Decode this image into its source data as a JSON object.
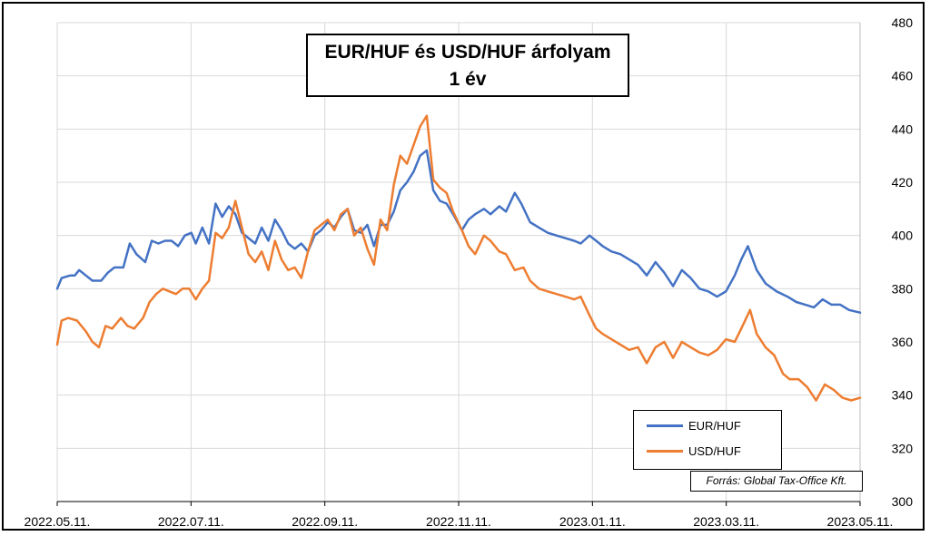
{
  "chart_data": {
    "type": "line",
    "title": [
      "EUR/HUF és USD/HUF árfolyam",
      "1 év"
    ],
    "x_tick_labels": [
      "2022.05.11.",
      "2022.07.11.",
      "2022.09.11.",
      "2022.11.11.",
      "2023.01.11.",
      "2023.03.11.",
      "2023.05.11."
    ],
    "y_tick_labels": [
      "300",
      "320",
      "340",
      "360",
      "380",
      "400",
      "420",
      "440",
      "460",
      "480"
    ],
    "ylim": [
      300,
      480
    ],
    "xlim": [
      "2022-05-11",
      "2023-05-11"
    ],
    "y_axis_side": "right",
    "grid": true,
    "legend_position": "bottom-right",
    "source_note": "Forrás: Global Tax-Office Kft.",
    "series": [
      {
        "name": "EUR/HUF",
        "color": "#4472C4",
        "points": [
          [
            "2022-05-11",
            380
          ],
          [
            "2022-05-13",
            384
          ],
          [
            "2022-05-17",
            385
          ],
          [
            "2022-05-19",
            385
          ],
          [
            "2022-05-21",
            387
          ],
          [
            "2022-05-24",
            385
          ],
          [
            "2022-05-27",
            383
          ],
          [
            "2022-05-31",
            383
          ],
          [
            "2022-06-03",
            386
          ],
          [
            "2022-06-06",
            388
          ],
          [
            "2022-06-10",
            388
          ],
          [
            "2022-06-13",
            397
          ],
          [
            "2022-06-16",
            393
          ],
          [
            "2022-06-20",
            390
          ],
          [
            "2022-06-23",
            398
          ],
          [
            "2022-06-26",
            397
          ],
          [
            "2022-06-29",
            398
          ],
          [
            "2022-07-02",
            398
          ],
          [
            "2022-07-05",
            396
          ],
          [
            "2022-07-08",
            400
          ],
          [
            "2022-07-11",
            401
          ],
          [
            "2022-07-13",
            397
          ],
          [
            "2022-07-16",
            403
          ],
          [
            "2022-07-19",
            397
          ],
          [
            "2022-07-22",
            412
          ],
          [
            "2022-07-25",
            407
          ],
          [
            "2022-07-28",
            411
          ],
          [
            "2022-07-31",
            408
          ],
          [
            "2022-08-03",
            401
          ],
          [
            "2022-08-06",
            399
          ],
          [
            "2022-08-09",
            397
          ],
          [
            "2022-08-12",
            403
          ],
          [
            "2022-08-15",
            398
          ],
          [
            "2022-08-18",
            406
          ],
          [
            "2022-08-21",
            402
          ],
          [
            "2022-08-24",
            397
          ],
          [
            "2022-08-27",
            395
          ],
          [
            "2022-08-30",
            397
          ],
          [
            "2022-09-02",
            394
          ],
          [
            "2022-09-05",
            400
          ],
          [
            "2022-09-08",
            402
          ],
          [
            "2022-09-11",
            405
          ],
          [
            "2022-09-14",
            403
          ],
          [
            "2022-09-17",
            407
          ],
          [
            "2022-09-20",
            410
          ],
          [
            "2022-09-23",
            402
          ],
          [
            "2022-09-26",
            401
          ],
          [
            "2022-09-29",
            404
          ],
          [
            "2022-10-02",
            396
          ],
          [
            "2022-10-05",
            404
          ],
          [
            "2022-10-08",
            404
          ],
          [
            "2022-10-11",
            409
          ],
          [
            "2022-10-14",
            417
          ],
          [
            "2022-10-17",
            420
          ],
          [
            "2022-10-20",
            424
          ],
          [
            "2022-10-23",
            430
          ],
          [
            "2022-10-26",
            432
          ],
          [
            "2022-10-29",
            417
          ],
          [
            "2022-11-01",
            413
          ],
          [
            "2022-11-04",
            412
          ],
          [
            "2022-11-07",
            408
          ],
          [
            "2022-11-11",
            402
          ],
          [
            "2022-11-14",
            406
          ],
          [
            "2022-11-17",
            408
          ],
          [
            "2022-11-21",
            410
          ],
          [
            "2022-11-24",
            408
          ],
          [
            "2022-11-28",
            411
          ],
          [
            "2022-12-01",
            409
          ],
          [
            "2022-12-05",
            416
          ],
          [
            "2022-12-08",
            412
          ],
          [
            "2022-12-12",
            405
          ],
          [
            "2022-12-16",
            403
          ],
          [
            "2022-12-20",
            401
          ],
          [
            "2022-12-24",
            400
          ],
          [
            "2022-12-28",
            399
          ],
          [
            "2023-01-01",
            398
          ],
          [
            "2023-01-04",
            397
          ],
          [
            "2023-01-08",
            400
          ],
          [
            "2023-01-11",
            398
          ],
          [
            "2023-01-14",
            396
          ],
          [
            "2023-01-18",
            394
          ],
          [
            "2023-01-22",
            393
          ],
          [
            "2023-01-26",
            391
          ],
          [
            "2023-01-30",
            389
          ],
          [
            "2023-02-03",
            385
          ],
          [
            "2023-02-07",
            390
          ],
          [
            "2023-02-11",
            386
          ],
          [
            "2023-02-15",
            381
          ],
          [
            "2023-02-19",
            387
          ],
          [
            "2023-02-23",
            384
          ],
          [
            "2023-02-27",
            380
          ],
          [
            "2023-03-03",
            379
          ],
          [
            "2023-03-07",
            377
          ],
          [
            "2023-03-11",
            379
          ],
          [
            "2023-03-15",
            385
          ],
          [
            "2023-03-18",
            391
          ],
          [
            "2023-03-21",
            396
          ],
          [
            "2023-03-25",
            387
          ],
          [
            "2023-03-29",
            382
          ],
          [
            "2023-04-03",
            379
          ],
          [
            "2023-04-08",
            377
          ],
          [
            "2023-04-12",
            375
          ],
          [
            "2023-04-16",
            374
          ],
          [
            "2023-04-20",
            373
          ],
          [
            "2023-04-24",
            376
          ],
          [
            "2023-04-28",
            374
          ],
          [
            "2023-05-02",
            374
          ],
          [
            "2023-05-06",
            372
          ],
          [
            "2023-05-11",
            371
          ]
        ]
      },
      {
        "name": "USD/HUF",
        "color": "#ED7D31",
        "points": [
          [
            "2022-05-11",
            359
          ],
          [
            "2022-05-13",
            368
          ],
          [
            "2022-05-16",
            369
          ],
          [
            "2022-05-20",
            368
          ],
          [
            "2022-05-24",
            364
          ],
          [
            "2022-05-27",
            360
          ],
          [
            "2022-05-30",
            358
          ],
          [
            "2022-06-02",
            366
          ],
          [
            "2022-06-05",
            365
          ],
          [
            "2022-06-09",
            369
          ],
          [
            "2022-06-12",
            366
          ],
          [
            "2022-06-15",
            365
          ],
          [
            "2022-06-19",
            369
          ],
          [
            "2022-06-22",
            375
          ],
          [
            "2022-06-25",
            378
          ],
          [
            "2022-06-28",
            380
          ],
          [
            "2022-07-01",
            379
          ],
          [
            "2022-07-04",
            378
          ],
          [
            "2022-07-07",
            380
          ],
          [
            "2022-07-10",
            380
          ],
          [
            "2022-07-13",
            376
          ],
          [
            "2022-07-16",
            380
          ],
          [
            "2022-07-19",
            383
          ],
          [
            "2022-07-22",
            401
          ],
          [
            "2022-07-25",
            399
          ],
          [
            "2022-07-28",
            403
          ],
          [
            "2022-07-31",
            413
          ],
          [
            "2022-08-03",
            403
          ],
          [
            "2022-08-06",
            393
          ],
          [
            "2022-08-09",
            390
          ],
          [
            "2022-08-12",
            394
          ],
          [
            "2022-08-15",
            387
          ],
          [
            "2022-08-18",
            398
          ],
          [
            "2022-08-21",
            391
          ],
          [
            "2022-08-24",
            387
          ],
          [
            "2022-08-27",
            388
          ],
          [
            "2022-08-30",
            384
          ],
          [
            "2022-09-02",
            394
          ],
          [
            "2022-09-05",
            402
          ],
          [
            "2022-09-08",
            404
          ],
          [
            "2022-09-11",
            406
          ],
          [
            "2022-09-14",
            402
          ],
          [
            "2022-09-17",
            408
          ],
          [
            "2022-09-20",
            410
          ],
          [
            "2022-09-23",
            400
          ],
          [
            "2022-09-26",
            403
          ],
          [
            "2022-09-29",
            395
          ],
          [
            "2022-10-02",
            389
          ],
          [
            "2022-10-05",
            406
          ],
          [
            "2022-10-08",
            402
          ],
          [
            "2022-10-11",
            419
          ],
          [
            "2022-10-14",
            430
          ],
          [
            "2022-10-17",
            427
          ],
          [
            "2022-10-20",
            434
          ],
          [
            "2022-10-23",
            441
          ],
          [
            "2022-10-26",
            445
          ],
          [
            "2022-10-29",
            421
          ],
          [
            "2022-11-01",
            418
          ],
          [
            "2022-11-04",
            416
          ],
          [
            "2022-11-07",
            409
          ],
          [
            "2022-11-11",
            402
          ],
          [
            "2022-11-14",
            396
          ],
          [
            "2022-11-17",
            393
          ],
          [
            "2022-11-21",
            400
          ],
          [
            "2022-11-24",
            398
          ],
          [
            "2022-11-28",
            394
          ],
          [
            "2022-12-01",
            393
          ],
          [
            "2022-12-05",
            387
          ],
          [
            "2022-12-09",
            388
          ],
          [
            "2022-12-12",
            383
          ],
          [
            "2022-12-16",
            380
          ],
          [
            "2022-12-20",
            379
          ],
          [
            "2022-12-24",
            378
          ],
          [
            "2022-12-28",
            377
          ],
          [
            "2023-01-01",
            376
          ],
          [
            "2023-01-04",
            377
          ],
          [
            "2023-01-08",
            370
          ],
          [
            "2023-01-11",
            365
          ],
          [
            "2023-01-14",
            363
          ],
          [
            "2023-01-18",
            361
          ],
          [
            "2023-01-22",
            359
          ],
          [
            "2023-01-26",
            357
          ],
          [
            "2023-01-30",
            358
          ],
          [
            "2023-02-03",
            352
          ],
          [
            "2023-02-07",
            358
          ],
          [
            "2023-02-11",
            360
          ],
          [
            "2023-02-15",
            354
          ],
          [
            "2023-02-19",
            360
          ],
          [
            "2023-02-23",
            358
          ],
          [
            "2023-02-27",
            356
          ],
          [
            "2023-03-03",
            355
          ],
          [
            "2023-03-07",
            357
          ],
          [
            "2023-03-11",
            361
          ],
          [
            "2023-03-15",
            360
          ],
          [
            "2023-03-18",
            365
          ],
          [
            "2023-03-22",
            372
          ],
          [
            "2023-03-25",
            363
          ],
          [
            "2023-03-29",
            358
          ],
          [
            "2023-04-02",
            355
          ],
          [
            "2023-04-06",
            348
          ],
          [
            "2023-04-09",
            346
          ],
          [
            "2023-04-13",
            346
          ],
          [
            "2023-04-17",
            343
          ],
          [
            "2023-04-21",
            338
          ],
          [
            "2023-04-25",
            344
          ],
          [
            "2023-04-29",
            342
          ],
          [
            "2023-05-03",
            339
          ],
          [
            "2023-05-07",
            338
          ],
          [
            "2023-05-11",
            339
          ]
        ]
      }
    ]
  }
}
